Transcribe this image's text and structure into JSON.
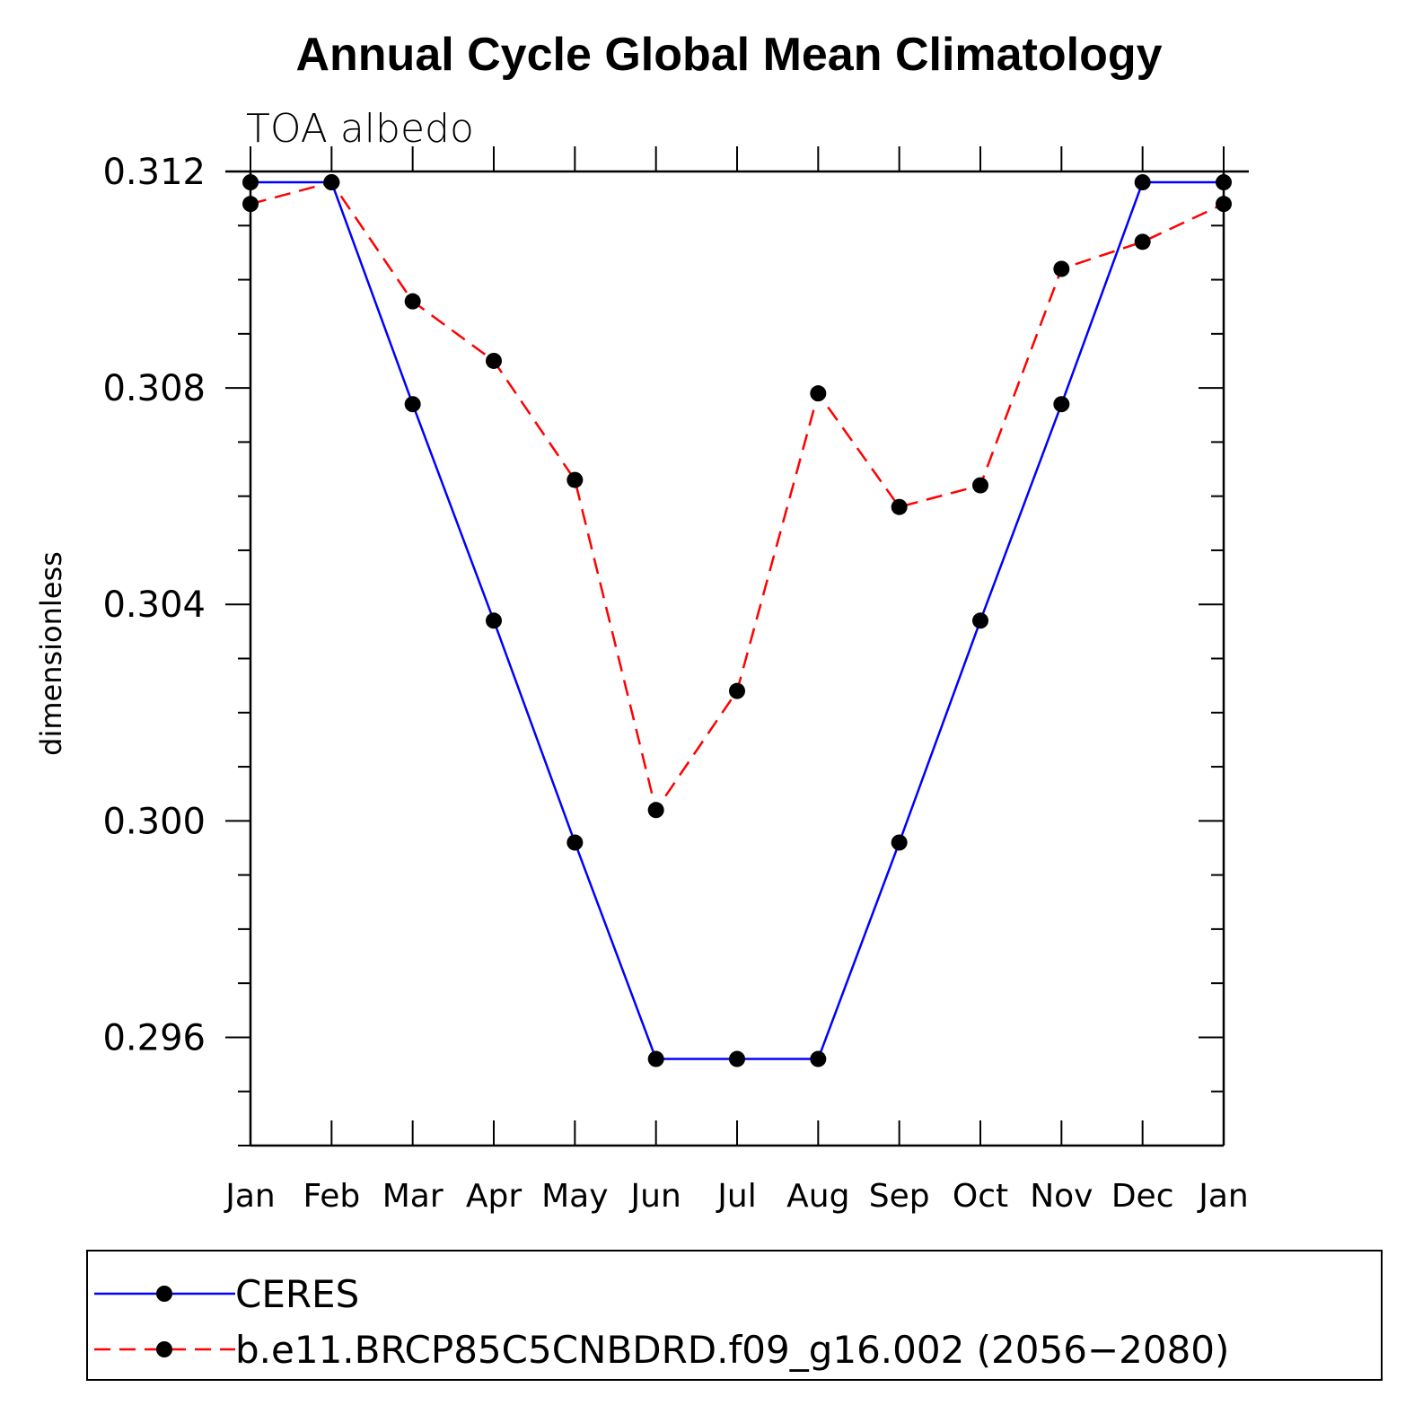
{
  "chart_data": {
    "type": "line",
    "title": "Annual Cycle Global Mean Climatology",
    "subtitle": "TOA albedo",
    "xlabel": "",
    "ylabel": "dimensionless",
    "categories": [
      "Jan",
      "Feb",
      "Mar",
      "Apr",
      "May",
      "Jun",
      "Jul",
      "Aug",
      "Sep",
      "Oct",
      "Nov",
      "Dec",
      "Jan"
    ],
    "ylim": [
      0.294,
      0.312
    ],
    "yticks": [
      "0.296",
      "0.300",
      "0.304",
      "0.308",
      "0.312"
    ],
    "yticks_values": [
      0.296,
      0.3,
      0.304,
      0.308,
      0.312
    ],
    "legend_position": "bottom",
    "series": [
      {
        "name": "CERES",
        "color": "#0000ff",
        "dash": "solid",
        "values": [
          0.3118,
          0.3118,
          0.3077,
          0.3037,
          0.2996,
          0.2956,
          0.2956,
          0.2956,
          0.2996,
          0.3037,
          0.3077,
          0.3118,
          0.3118
        ]
      },
      {
        "name": "b.e11.BRCP85C5CNBDRD.f09_g16.002 (2056−2080)",
        "color": "#ff0000",
        "dash": "dashed",
        "values": [
          0.3114,
          0.3118,
          0.3096,
          0.3085,
          0.3063,
          0.3002,
          0.3024,
          0.3079,
          0.3058,
          0.3062,
          0.3102,
          0.3107,
          0.3114
        ]
      }
    ]
  }
}
